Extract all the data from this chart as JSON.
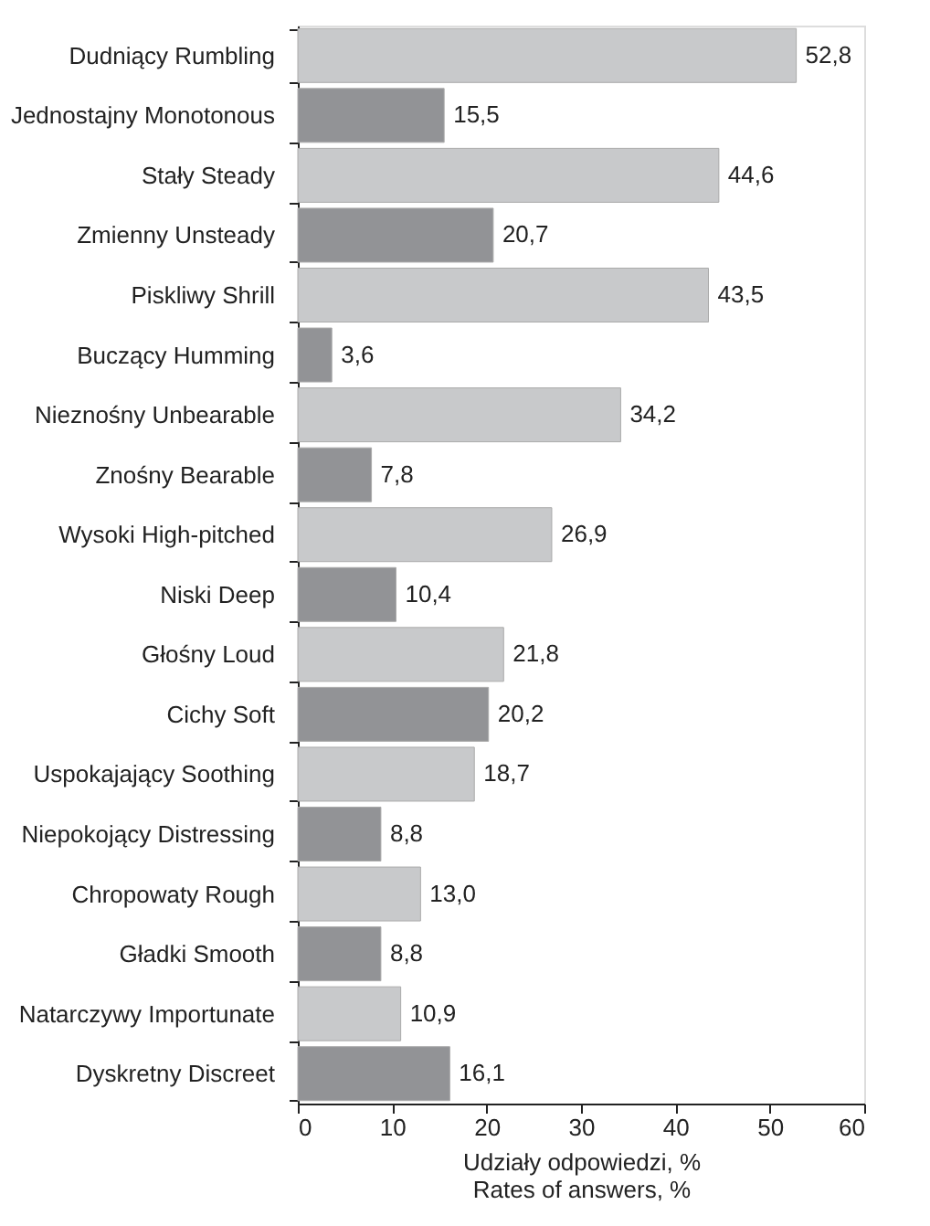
{
  "chart_data": {
    "type": "bar",
    "orientation": "horizontal",
    "categories": [
      "Dudniący Rumbling",
      "Jednostajny Monotonous",
      "Stały Steady",
      "Zmienny Unsteady",
      "Piskliwy Shrill",
      "Buczący Humming",
      "Nieznośny Unbearable",
      "Znośny Bearable",
      "Wysoki High-pitched",
      "Niski Deep",
      "Głośny Loud",
      "Cichy Soft",
      "Uspokajający Soothing",
      "Niepokojący Distressing",
      "Chropowaty Rough",
      "Gładki Smooth",
      "Natarczywy Importunate",
      "Dyskretny Discreet"
    ],
    "values": [
      52.8,
      15.5,
      44.6,
      20.7,
      43.5,
      3.6,
      34.2,
      7.8,
      26.9,
      10.4,
      21.8,
      20.2,
      18.7,
      8.8,
      13.0,
      8.8,
      10.9,
      16.1
    ],
    "value_labels": [
      "52,8",
      "15,5",
      "44,6",
      "20,7",
      "43,5",
      "3,6",
      "34,2",
      "7,8",
      "26,9",
      "10,4",
      "21,8",
      "20,2",
      "18,7",
      "8,8",
      "13,0",
      "8,8",
      "10,9",
      "16,1"
    ],
    "colors": [
      "#c8c9cb",
      "#929396",
      "#c8c9cb",
      "#929396",
      "#c8c9cb",
      "#929396",
      "#c8c9cb",
      "#929396",
      "#c8c9cb",
      "#929396",
      "#c8c9cb",
      "#929396",
      "#c8c9cb",
      "#929396",
      "#c8c9cb",
      "#929396",
      "#c8c9cb",
      "#929396"
    ],
    "xlim": [
      0,
      60
    ],
    "xticks": [
      0,
      10,
      20,
      30,
      40,
      50,
      60
    ],
    "xlabel": "Udziały odpowiedzi, %\nRates of answers, %",
    "grid": false
  }
}
